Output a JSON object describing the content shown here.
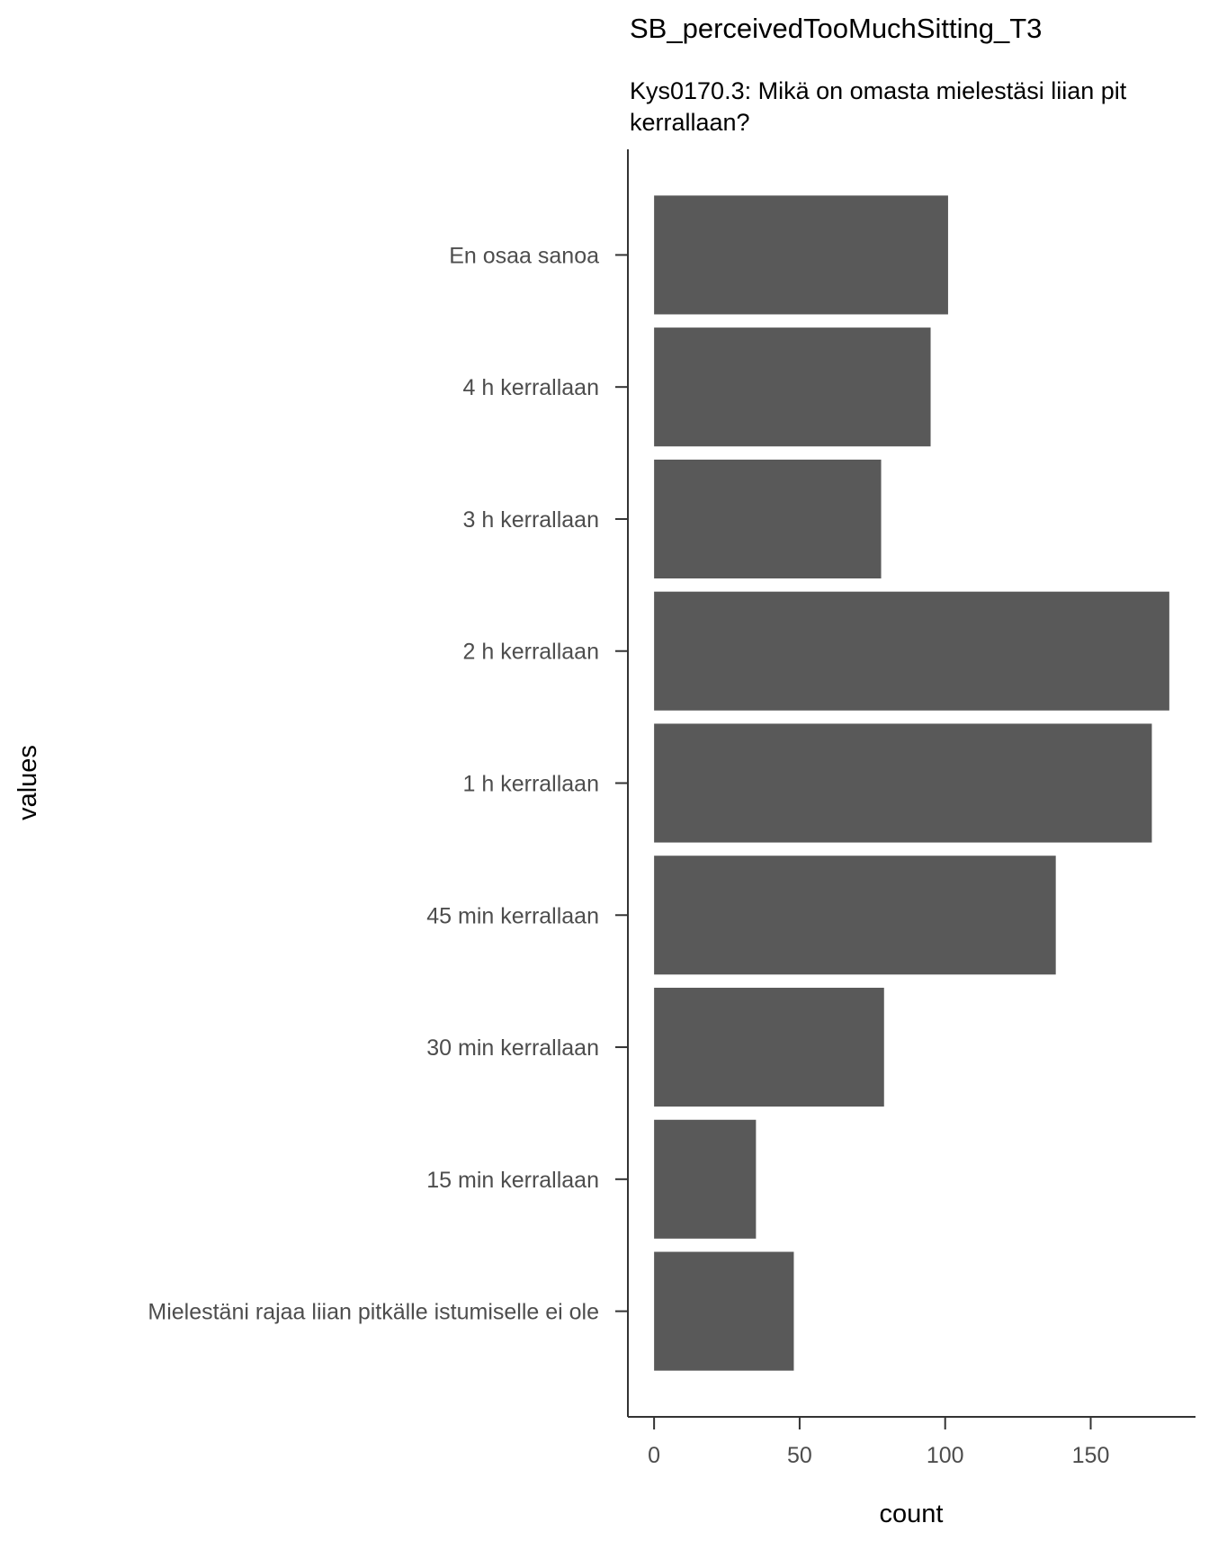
{
  "chart_data": {
    "type": "bar",
    "orientation": "horizontal",
    "title": "SB_perceivedTooMuchSitting_T3",
    "subtitle_lines": [
      "Kys0170.3: Mikä on omasta mielestäsi liian pit",
      "kerrallaan?"
    ],
    "xlabel": "count",
    "ylabel": "values",
    "categories": [
      "En osaa sanoa",
      "4 h kerrallaan",
      "3 h kerrallaan",
      "2 h kerrallaan",
      "1 h kerrallaan",
      "45 min kerrallaan",
      "30 min kerrallaan",
      "15 min kerrallaan",
      "Mielestäni rajaa liian pitkälle istumiselle ei ole"
    ],
    "values": [
      101,
      95,
      78,
      177,
      171,
      138,
      79,
      35,
      48
    ],
    "xlim": [
      -9,
      186
    ],
    "x_ticks": [
      0,
      50,
      100,
      150
    ],
    "grid": false,
    "colors": {
      "bar": "#595959",
      "axis": "#333333",
      "tick_text": "#4d4d4d"
    }
  }
}
